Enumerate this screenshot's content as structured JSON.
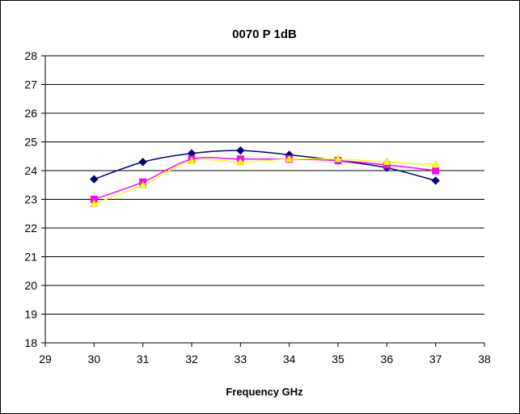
{
  "chart_data": {
    "type": "line",
    "title": "0070 P 1dB",
    "xlabel": "Frequency GHz",
    "ylabel": "",
    "xlim": [
      29,
      38
    ],
    "ylim": [
      18,
      28
    ],
    "x_ticks": [
      "29",
      "30",
      "31",
      "32",
      "33",
      "34",
      "35",
      "36",
      "37",
      "38"
    ],
    "y_ticks": [
      "18",
      "19",
      "20",
      "21",
      "22",
      "23",
      "24",
      "25",
      "26",
      "27",
      "28"
    ],
    "grid": "horizontal",
    "legend": "none",
    "x": [
      30,
      31,
      32,
      33,
      34,
      35,
      36,
      37
    ],
    "series": [
      {
        "color": "#000080",
        "marker": "diamond",
        "values": [
          23.7,
          24.3,
          24.6,
          24.7,
          24.55,
          24.35,
          24.1,
          23.65
        ]
      },
      {
        "color": "#ff00ff",
        "marker": "square",
        "values": [
          23.0,
          23.6,
          24.4,
          24.4,
          24.4,
          24.35,
          24.2,
          24.0
        ]
      },
      {
        "color": "#ffff00",
        "marker": "triangle",
        "values": [
          22.85,
          23.5,
          24.35,
          24.3,
          24.4,
          24.4,
          24.3,
          24.2
        ]
      }
    ]
  }
}
